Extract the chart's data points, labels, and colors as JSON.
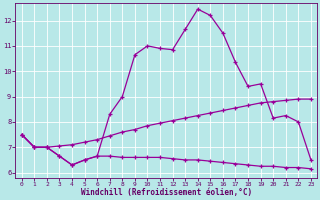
{
  "xlabel": "Windchill (Refroidissement éolien,°C)",
  "bg_color": "#b8e8e8",
  "line_color": "#990099",
  "xlim": [
    -0.5,
    23.5
  ],
  "ylim": [
    5.8,
    12.7
  ],
  "yticks": [
    6,
    7,
    8,
    9,
    10,
    11,
    12
  ],
  "xticks": [
    0,
    1,
    2,
    3,
    4,
    5,
    6,
    7,
    8,
    9,
    10,
    11,
    12,
    13,
    14,
    15,
    16,
    17,
    18,
    19,
    20,
    21,
    22,
    23
  ],
  "series": [
    {
      "x": [
        0,
        1,
        2,
        3,
        4,
        5,
        6,
        7,
        8,
        9,
        10,
        11,
        12,
        13,
        14,
        15,
        16,
        17,
        18,
        19,
        20,
        21,
        22,
        23
      ],
      "y": [
        7.5,
        7.0,
        7.0,
        6.65,
        6.3,
        6.5,
        6.65,
        6.65,
        6.6,
        6.6,
        6.6,
        6.6,
        6.55,
        6.5,
        6.5,
        6.45,
        6.4,
        6.35,
        6.3,
        6.25,
        6.25,
        6.2,
        6.2,
        6.15
      ]
    },
    {
      "x": [
        0,
        1,
        2,
        3,
        4,
        5,
        6,
        7,
        8,
        9,
        10,
        11,
        12,
        13,
        14,
        15,
        16,
        17,
        18,
        19,
        20,
        21,
        22,
        23
      ],
      "y": [
        7.5,
        7.0,
        7.0,
        7.05,
        7.1,
        7.2,
        7.3,
        7.45,
        7.6,
        7.7,
        7.85,
        7.95,
        8.05,
        8.15,
        8.25,
        8.35,
        8.45,
        8.55,
        8.65,
        8.75,
        8.8,
        8.85,
        8.9,
        8.9
      ]
    },
    {
      "x": [
        0,
        1,
        2,
        3,
        4,
        5,
        6,
        7,
        8,
        9,
        10,
        11,
        12,
        13,
        14,
        15,
        16,
        17,
        18,
        19,
        20,
        21,
        22,
        23
      ],
      "y": [
        7.5,
        7.0,
        7.0,
        6.65,
        6.3,
        6.5,
        6.65,
        8.3,
        9.0,
        10.65,
        11.0,
        10.9,
        10.85,
        11.65,
        12.45,
        12.2,
        11.5,
        10.35,
        9.4,
        9.5,
        8.15,
        8.25,
        8.0,
        6.5
      ]
    }
  ]
}
